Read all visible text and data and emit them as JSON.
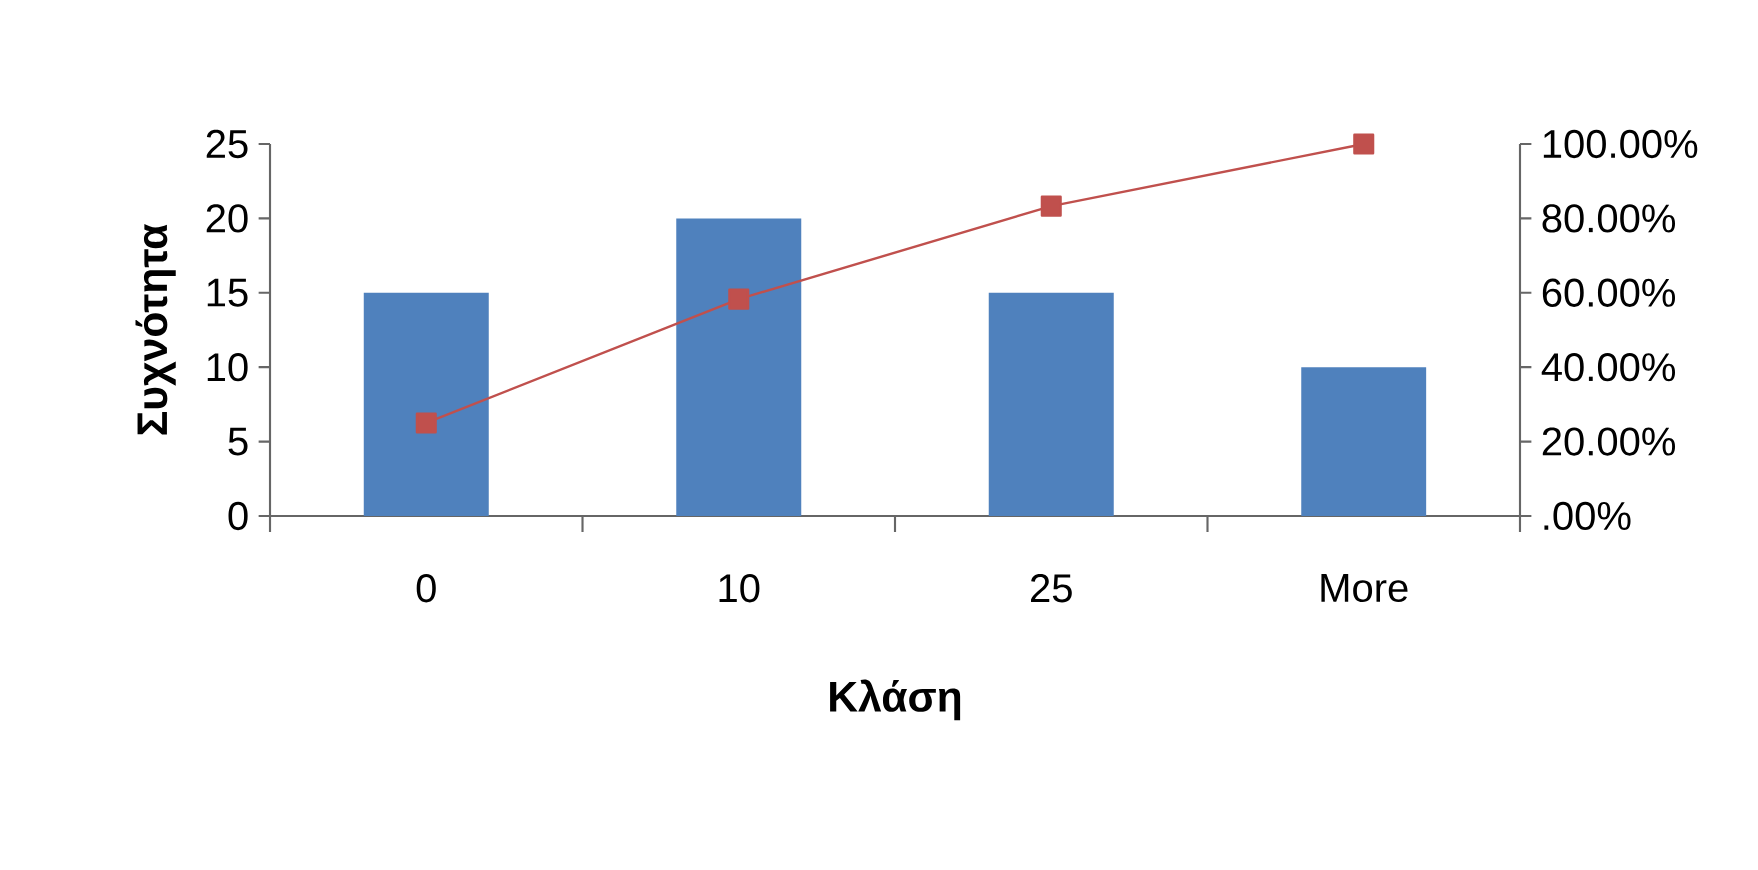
{
  "chart_data": {
    "type": "bar",
    "xlabel": "Κλάση",
    "ylabel": "Συχνότητα",
    "categories": [
      "0",
      "10",
      "25",
      "More"
    ],
    "series": [
      {
        "color": "#4f81bd",
        "values": [
          15,
          20,
          15,
          10
        ]
      },
      {
        "type": "line",
        "axis": "y2",
        "color": "#c0504d",
        "marker": "square",
        "values": [
          25,
          58.3,
          83.3,
          100
        ]
      }
    ],
    "ylim": [
      0,
      25
    ],
    "yticks": [
      0,
      5,
      10,
      15,
      20,
      25
    ],
    "y2lim": [
      0,
      100
    ],
    "y2ticks": [
      {
        "value": 0,
        "label": ".00%"
      },
      {
        "value": 20,
        "label": "20.00%"
      },
      {
        "value": 40,
        "label": "40.00%"
      },
      {
        "value": 60,
        "label": "60.00%"
      },
      {
        "value": 80,
        "label": "80.00%"
      },
      {
        "value": 100,
        "label": "100.00%"
      }
    ]
  }
}
